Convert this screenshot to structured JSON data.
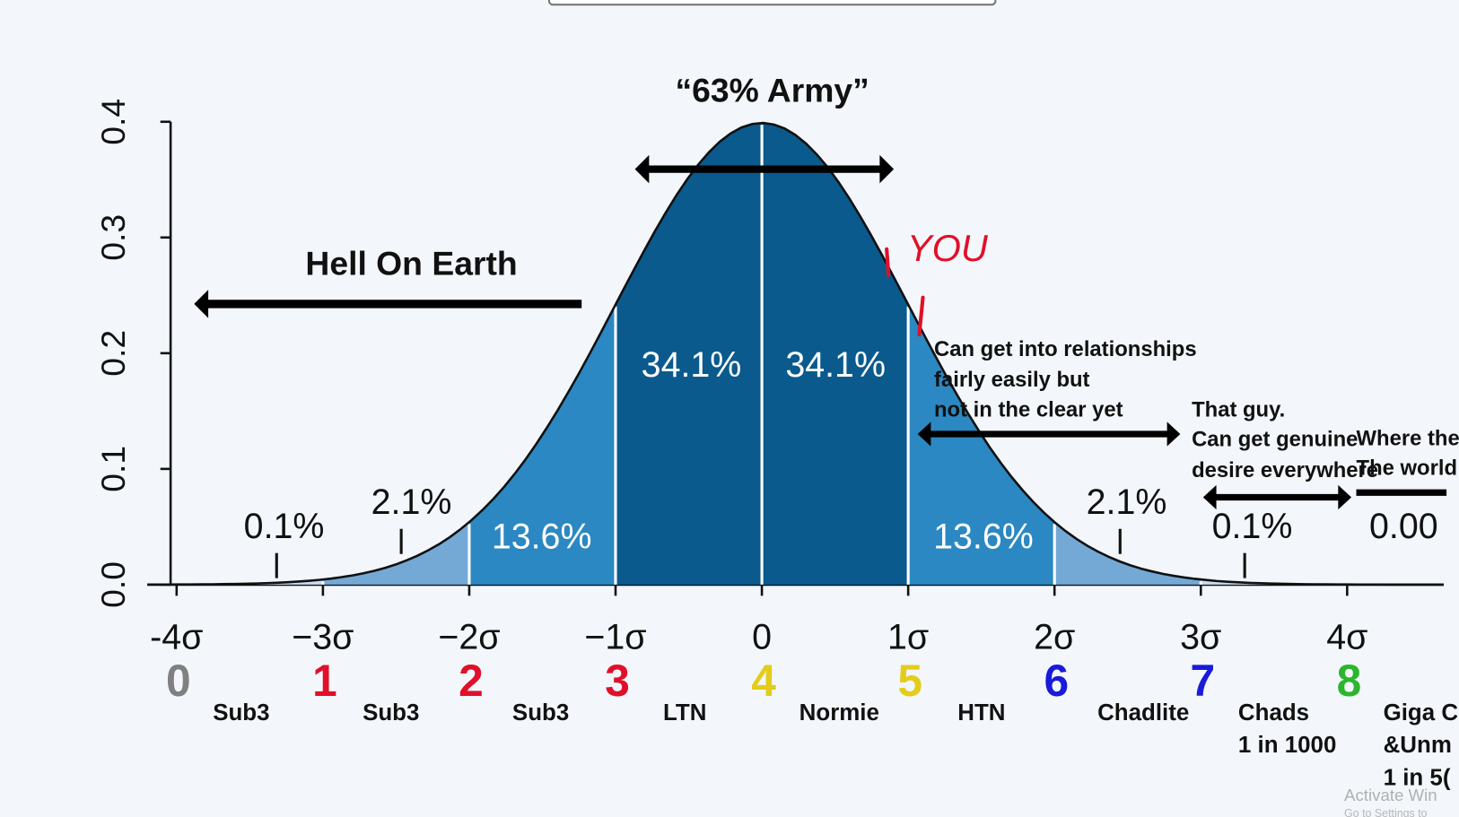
{
  "chart_data": {
    "type": "normal",
    "title": "“63% Army”",
    "xlim": [
      -4.2,
      4.66
    ],
    "xticks": [
      {
        "value": -4,
        "label": "-4σ"
      },
      {
        "value": -3,
        "label": "−3σ"
      },
      {
        "value": -2,
        "label": "−2σ"
      },
      {
        "value": -1,
        "label": "−1σ"
      },
      0,
      {
        "value": 1,
        "label": "1σ"
      },
      {
        "value": 2,
        "label": "2σ"
      },
      {
        "value": 3,
        "label": "3σ"
      },
      {
        "value": 4,
        "label": "4σ"
      }
    ],
    "ylim": [
      0,
      0.4
    ],
    "yticks": [
      {
        "value": 0,
        "label": "0.0"
      },
      0.1,
      0.2,
      0.3,
      0.4
    ],
    "bands": [
      {
        "from": -4.2,
        "to": -3,
        "value": 0.1,
        "label": "0.1%",
        "color": "#c9dcef"
      },
      {
        "from": -3,
        "to": -2,
        "value": 2.1,
        "label": "2.1%",
        "color": "#74a9d6"
      },
      {
        "from": -2,
        "to": -1,
        "value": 13.6,
        "label": "13.6%",
        "color": "#2b88c2"
      },
      {
        "from": -1,
        "to": 0,
        "value": 34.1,
        "label": "34.1%",
        "color": "#0a5a8d"
      },
      {
        "from": 0,
        "to": 1,
        "value": 34.1,
        "label": "34.1%",
        "color": "#0a5a8d"
      },
      {
        "from": 1,
        "to": 2,
        "value": 13.6,
        "label": "13.6%",
        "color": "#2b88c2"
      },
      {
        "from": 2,
        "to": 3,
        "value": 2.1,
        "label": "2.1%",
        "color": "#74a9d6"
      },
      {
        "from": 3,
        "to": 4.66,
        "value": 0.1,
        "label": "0.1%",
        "color": "#c9dcef"
      }
    ],
    "ranks": [
      {
        "label": "0",
        "color": "#808080"
      },
      {
        "label": "1",
        "color": "#e0102a"
      },
      {
        "label": "2",
        "color": "#e0102a"
      },
      {
        "label": "3",
        "color": "#e0102a"
      },
      {
        "label": "4",
        "color": "#e3cc1c"
      },
      {
        "label": "5",
        "color": "#e3cc1c"
      },
      {
        "label": "6",
        "color": "#1a1adb"
      },
      {
        "label": "7",
        "color": "#1a1adb"
      },
      {
        "label": "8",
        "color": "#2db52d"
      }
    ],
    "tiers": [
      [
        "Sub3"
      ],
      [
        "Sub3"
      ],
      [
        "Sub3"
      ],
      [
        "LTN"
      ],
      [
        "Normie"
      ],
      [
        "HTN"
      ],
      [
        "Chadlite"
      ],
      [
        "Chads",
        "1 in 1000"
      ],
      [
        "Giga C",
        "&Unm",
        "1 in 5("
      ]
    ],
    "annotations": {
      "hell": "Hell On Earth",
      "relationships": [
        "Can get into relationships",
        "fairly easily but",
        "not in the clear yet"
      ],
      "that_guy": [
        "That guy.",
        "Can get genuine",
        "desire everywhere"
      ],
      "world": [
        "Where the",
        "The world"
      ],
      "far_right": "0.00",
      "you": "YOU"
    },
    "watermark": [
      "Activate Win",
      "Go to Settings to"
    ]
  }
}
